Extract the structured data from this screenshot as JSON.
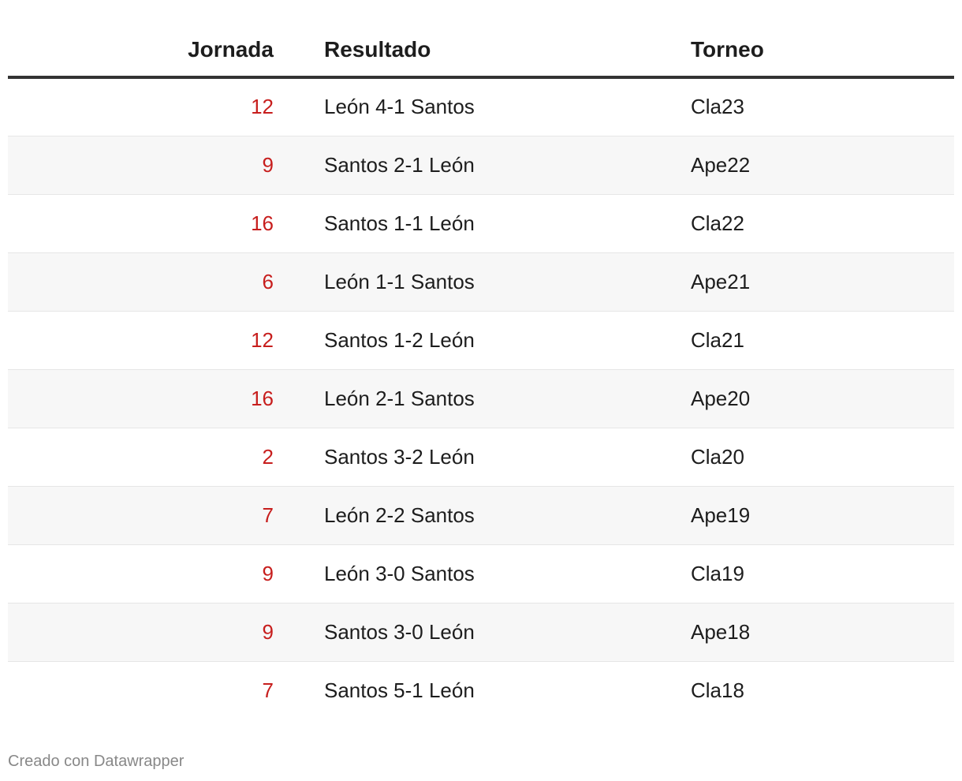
{
  "chart_data": {
    "type": "table",
    "columns": [
      "Jornada",
      "Resultado",
      "Torneo"
    ],
    "rows": [
      {
        "jornada": 12,
        "resultado": "León 4-1 Santos",
        "torneo": "Cla23"
      },
      {
        "jornada": 9,
        "resultado": "Santos 2-1 León",
        "torneo": "Ape22"
      },
      {
        "jornada": 16,
        "resultado": "Santos 1-1 León",
        "torneo": "Cla22"
      },
      {
        "jornada": 6,
        "resultado": "León 1-1 Santos",
        "torneo": "Ape21"
      },
      {
        "jornada": 12,
        "resultado": "Santos 1-2 León",
        "torneo": "Cla21"
      },
      {
        "jornada": 16,
        "resultado": "León 2-1 Santos",
        "torneo": "Ape20"
      },
      {
        "jornada": 2,
        "resultado": "Santos 3-2 León",
        "torneo": "Cla20"
      },
      {
        "jornada": 7,
        "resultado": "León 2-2 Santos",
        "torneo": "Ape19"
      },
      {
        "jornada": 9,
        "resultado": "León 3-0 Santos",
        "torneo": "Cla19"
      },
      {
        "jornada": 9,
        "resultado": "Santos 3-0 León",
        "torneo": "Ape18"
      },
      {
        "jornada": 7,
        "resultado": "Santos 5-1 León",
        "torneo": "Cla18"
      }
    ],
    "colors": {
      "jornada_text": "#c71e1d",
      "text": "#1d1d1d",
      "stripe": "#f7f7f7",
      "header_rule": "#333333"
    }
  },
  "footer": {
    "credit": "Creado con Datawrapper"
  }
}
